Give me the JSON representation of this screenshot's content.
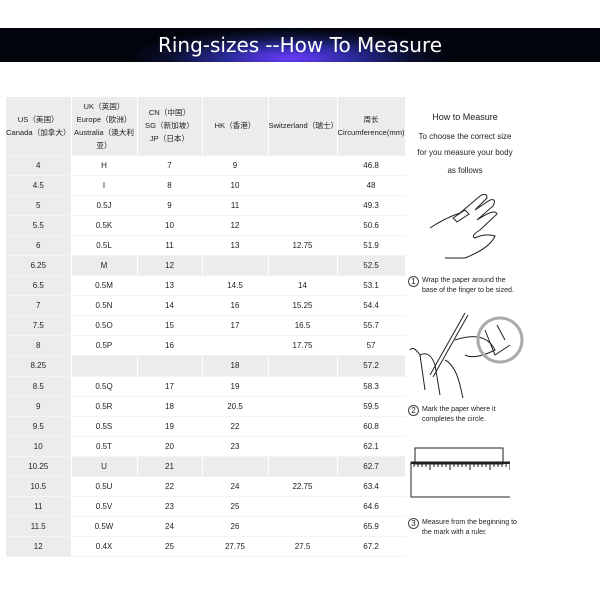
{
  "banner": {
    "title_left": "Ring-sizes",
    "title_right": "--How To Measure"
  },
  "table": {
    "headers": [
      [
        "US（美国）",
        "Canada（加拿大）"
      ],
      [
        "UK（英国）",
        "Europe（欧洲）",
        "Australia（澳大利",
        "亚）"
      ],
      [
        "CN（中国）",
        "SG（新加坡）",
        "JP（日本）"
      ],
      [
        "HK（香港）"
      ],
      [
        "Switzerland（瑞士）"
      ],
      [
        "周长",
        "Circumference(mm)"
      ]
    ],
    "rows": [
      [
        "4",
        "H",
        "7",
        "9",
        "",
        "46.8"
      ],
      [
        "4.5",
        "I",
        "8",
        "10",
        "",
        "48"
      ],
      [
        "5",
        "0.5J",
        "9",
        "11",
        "",
        "49.3"
      ],
      [
        "5.5",
        "0.5K",
        "10",
        "12",
        "",
        "50.6"
      ],
      [
        "6",
        "0.5L",
        "11",
        "13",
        "12.75",
        "51.9"
      ],
      [
        "6.25",
        "M",
        "12",
        "",
        "",
        "52.5"
      ],
      [
        "6.5",
        "0.5M",
        "13",
        "14.5",
        "14",
        "53.1"
      ],
      [
        "7",
        "0.5N",
        "14",
        "16",
        "15.25",
        "54.4"
      ],
      [
        "7.5",
        "0.5O",
        "15",
        "17",
        "16.5",
        "55.7"
      ],
      [
        "8",
        "0.5P",
        "16",
        "",
        "17.75",
        "57"
      ],
      [
        "8.25",
        "",
        "",
        "18",
        "",
        "57.2"
      ],
      [
        "8.5",
        "0.5Q",
        "17",
        "19",
        "",
        "58.3"
      ],
      [
        "9",
        "0.5R",
        "18",
        "20.5",
        "",
        "59.5"
      ],
      [
        "9.5",
        "0.5S",
        "19",
        "22",
        "",
        "60.8"
      ],
      [
        "10",
        "0.5T",
        "20",
        "23",
        "",
        "62.1"
      ],
      [
        "10.25",
        "U",
        "21",
        "",
        "",
        "62.7"
      ],
      [
        "10.5",
        "0.5U",
        "22",
        "24",
        "22.75",
        "63.4"
      ],
      [
        "11",
        "0.5V",
        "23",
        "25",
        "",
        "64.6"
      ],
      [
        "11.5",
        "0.5W",
        "24",
        "26",
        "",
        "65.9"
      ],
      [
        "12",
        "0.4X",
        "25",
        "27.75",
        "27.5",
        "67.2"
      ]
    ],
    "highlight_rows": [
      "6.25",
      "8.25",
      "10.25"
    ]
  },
  "side": {
    "title": "How to Measure",
    "intro": [
      "To choose the correct size",
      "for you measure your body",
      "as follows"
    ],
    "steps": [
      {
        "num": "1",
        "text": [
          "Wrap the paper around the",
          "base of the finger to be sized."
        ]
      },
      {
        "num": "2",
        "text": [
          "Mark the paper where it",
          "completes the circle."
        ]
      },
      {
        "num": "3",
        "text": [
          "Measure from the beginning to",
          "the mark with a ruler."
        ]
      }
    ]
  }
}
